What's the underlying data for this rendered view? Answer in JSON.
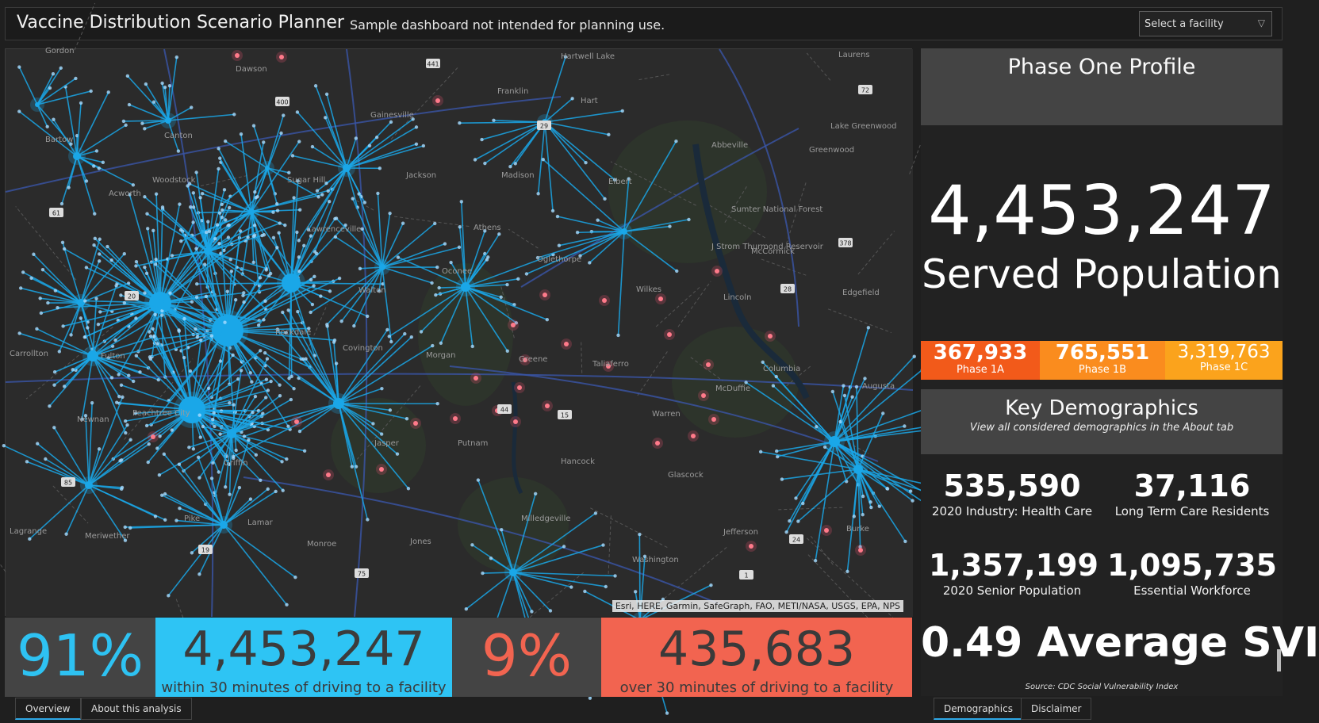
{
  "header": {
    "title": "Vaccine Distribution Scenario Planner",
    "subtitle": "Sample dashboard not intended for planning use.",
    "select_placeholder": "Select a facility"
  },
  "map": {
    "attribution": "Esri, HERE, Garmin, SafeGraph, FAO, METI/NASA, USGS, EPA, NPS",
    "place_labels": [
      "Gordon",
      "Dawson",
      "Hartwell Lake",
      "Laurens",
      "Bartow",
      "Canton",
      "Gainesville",
      "Franklin",
      "Hart",
      "Abbeville",
      "Lake Greenwood",
      "Greenwood",
      "Woodstock",
      "Sugar Hill",
      "Madison",
      "Jackson",
      "Elbert",
      "Acworth",
      "Lawrenceville",
      "Athens",
      "Oglethorpe",
      "Sumter National Forest",
      "McCormick",
      "J Strom Thurmond Reservoir",
      "Oconee",
      "Walton",
      "Wilkes",
      "Lincoln",
      "Edgefield",
      "Rockdale",
      "Covington",
      "Morgan",
      "Greene",
      "Taliaferro",
      "McDuffie",
      "Columbia",
      "Augusta",
      "Fulton",
      "Warren",
      "Peachtree City",
      "Newnan",
      "Jasper",
      "Putnam",
      "Hancock",
      "Glascock",
      "Griffin",
      "Pike",
      "Lamar",
      "Monroe",
      "Jones",
      "Milledgeville",
      "Washington",
      "Jefferson",
      "Burke",
      "Lagrange",
      "Meriwether",
      "Carrollton"
    ],
    "route_shields": [
      "400",
      "441",
      "29",
      "72",
      "61",
      "378",
      "28",
      "20",
      "44",
      "15",
      "85",
      "19",
      "75",
      "24",
      "1"
    ]
  },
  "stats": {
    "served_pct": "91%",
    "served_count": "4,453,247",
    "served_label": "within 30 minutes of driving to a facility",
    "unserved_pct": "9%",
    "unserved_count": "435,683",
    "unserved_label": "over 30 minutes of driving to a facility"
  },
  "tabs_left": [
    "Overview",
    "About this analysis"
  ],
  "tabs_right": [
    "Demographics",
    "Disclaimer"
  ],
  "profile": {
    "title": "Phase One Profile",
    "served_population": "4,453,247",
    "served_label": "Served Population",
    "phases": [
      {
        "value": "367,933",
        "label": "Phase 1A"
      },
      {
        "value": "765,551",
        "label": "Phase 1B"
      },
      {
        "value": "3,319,763",
        "label": "Phase 1C"
      }
    ]
  },
  "demographics": {
    "title": "Key Demographics",
    "subtitle": "View all considered demographics in the About tab",
    "metrics": [
      {
        "value": "535,590",
        "label": "2020 Industry: Health Care"
      },
      {
        "value": "37,116",
        "label": "Long Term Care Residents"
      },
      {
        "value": "1,357,199",
        "label": "2020 Senior Population"
      },
      {
        "value": "1,095,735",
        "label": "Essential Workforce"
      }
    ],
    "svi": "0.49 Average SVI",
    "source": "Source: CDC Social Vulnerability Index"
  },
  "colors": {
    "served": "#2ec4f4",
    "unserved": "#f26450",
    "phase_1a": "#f25a1a",
    "phase_1b": "#fa8c1e",
    "phase_1c": "#fba31c",
    "facility_lines": "#1aa7e8",
    "unserved_points": "#e0506a"
  }
}
